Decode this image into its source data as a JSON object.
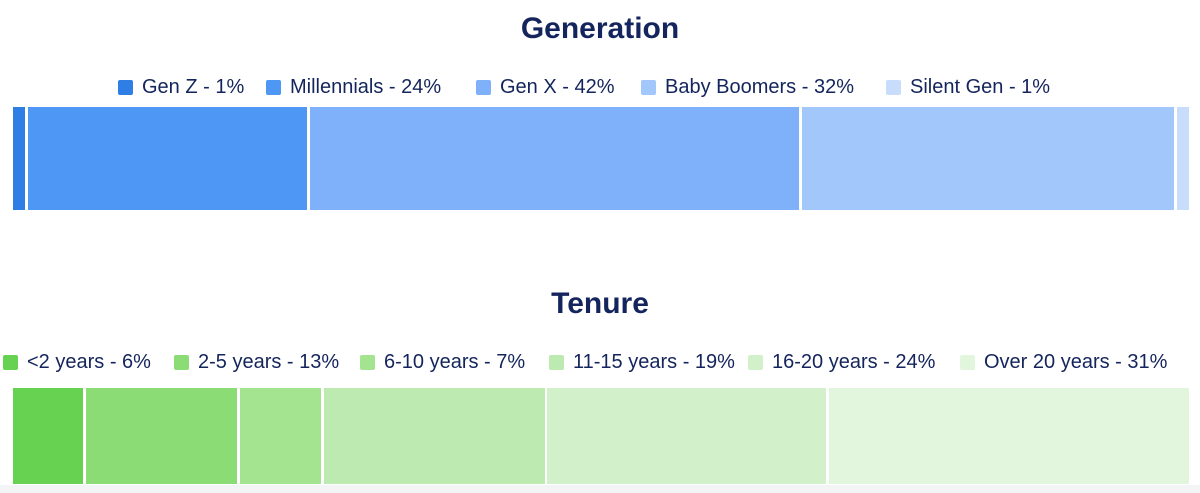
{
  "chart_data": [
    {
      "type": "bar",
      "orientation": "horizontal-stacked-100",
      "title": "Generation",
      "legend_position": "top",
      "grid": false,
      "series": [
        {
          "name": "Gen Z",
          "value": 1,
          "label": "Gen Z - 1%",
          "color": "#2f7ee6"
        },
        {
          "name": "Millennials",
          "value": 24,
          "label": "Millennials - 24%",
          "color": "#4f97f5"
        },
        {
          "name": "Gen X",
          "value": 42,
          "label": "Gen X - 42%",
          "color": "#7eb1fa"
        },
        {
          "name": "Baby Boomers",
          "value": 32,
          "label": "Baby Boomers - 32%",
          "color": "#a2c7fb"
        },
        {
          "name": "Silent Gen",
          "value": 1,
          "label": "Silent Gen - 1%",
          "color": "#c8ddfc"
        }
      ]
    },
    {
      "type": "bar",
      "orientation": "horizontal-stacked-100",
      "title": "Tenure",
      "legend_position": "top",
      "grid": false,
      "series": [
        {
          "name": "<2 years",
          "value": 6,
          "label": "<2 years - 6%",
          "color": "#67d152"
        },
        {
          "name": "2-5 years",
          "value": 13,
          "label": "2-5 years - 13%",
          "color": "#8bdc74"
        },
        {
          "name": "6-10 years",
          "value": 7,
          "label": "6-10 years - 7%",
          "color": "#a4e38f"
        },
        {
          "name": "11-15 years",
          "value": 19,
          "label": "11-15 years - 19%",
          "color": "#bceab0"
        },
        {
          "name": "16-20 years",
          "value": 24,
          "label": "16-20 years - 24%",
          "color": "#d2f1cb"
        },
        {
          "name": "Over 20 years",
          "value": 31,
          "label": "Over 20 years - 31%",
          "color": "#e2f6de"
        }
      ]
    }
  ]
}
